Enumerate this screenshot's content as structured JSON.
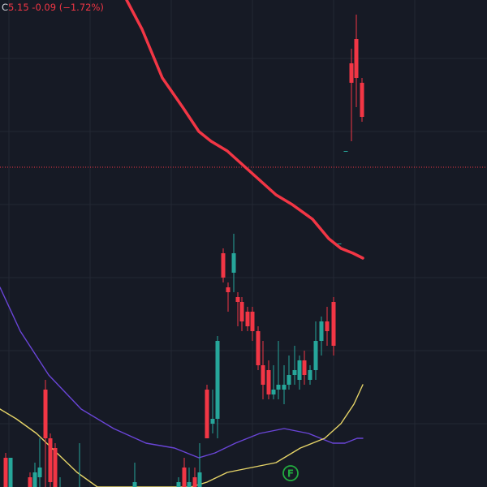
{
  "legend": {
    "close_label": "C",
    "close_value": "5.15",
    "change": "-0.09",
    "change_pct": "(−1.72%)",
    "change_color": "#f23645"
  },
  "colors": {
    "background": "#161a25",
    "grid": "#232834",
    "up": "#26a69a",
    "down": "#f23645",
    "ma_red": "#f23645",
    "ma_purple": "#6a45d8",
    "ma_yellow": "#e6d468",
    "price_line": "#f23645",
    "event_marker": "#22ab3f"
  },
  "event_marker": {
    "label": "F",
    "icon": "earnings-flag-icon"
  },
  "chart_data": {
    "type": "candlestick",
    "title": "",
    "grid": true,
    "current_price": 5.15,
    "price_ylim": [
      0,
      100
    ],
    "candles": [
      {
        "x": 7,
        "o": 6,
        "h": 7,
        "l": 0,
        "c": 0
      },
      {
        "x": 13,
        "o": 0,
        "h": 6,
        "l": 0,
        "c": 6
      },
      {
        "x": 37,
        "o": 2,
        "h": 3,
        "l": 0,
        "c": 0
      },
      {
        "x": 43,
        "o": 0,
        "h": 5,
        "l": 0,
        "c": 3
      },
      {
        "x": 49,
        "o": 2,
        "h": 10,
        "l": 0,
        "c": 4
      },
      {
        "x": 56,
        "o": 20,
        "h": 22,
        "l": 0,
        "c": 10
      },
      {
        "x": 62,
        "o": 10,
        "h": 11,
        "l": 0,
        "c": 1
      },
      {
        "x": 68,
        "o": 8,
        "h": 9,
        "l": 0,
        "c": 0
      },
      {
        "x": 74,
        "o": 0,
        "h": 2,
        "l": 0,
        "c": 0
      },
      {
        "x": 98,
        "o": 0,
        "h": 9,
        "l": 0,
        "c": 0
      },
      {
        "x": 166,
        "o": 0,
        "h": 5,
        "l": 0,
        "c": 1
      },
      {
        "x": 220,
        "o": 0,
        "h": 2,
        "l": 0,
        "c": 1
      },
      {
        "x": 227,
        "o": 4,
        "h": 6,
        "l": 0,
        "c": 0
      },
      {
        "x": 233,
        "o": 0,
        "h": 4,
        "l": 0,
        "c": 1
      },
      {
        "x": 240,
        "o": 2,
        "h": 4,
        "l": 0,
        "c": 0
      },
      {
        "x": 246,
        "o": 0,
        "h": 9,
        "l": 0,
        "c": 3
      },
      {
        "x": 255,
        "o": 20,
        "h": 21,
        "l": 10,
        "c": 10
      },
      {
        "x": 262,
        "o": 13,
        "h": 20,
        "l": 11,
        "c": 14
      },
      {
        "x": 268,
        "o": 14,
        "h": 31,
        "l": 10,
        "c": 30
      },
      {
        "x": 275,
        "o": 48,
        "h": 49,
        "l": 42,
        "c": 43
      },
      {
        "x": 281,
        "o": 41,
        "h": 42,
        "l": 36,
        "c": 40
      },
      {
        "x": 288,
        "o": 44,
        "h": 52,
        "l": 40,
        "c": 48
      },
      {
        "x": 293,
        "o": 39,
        "h": 40,
        "l": 33,
        "c": 38
      },
      {
        "x": 298,
        "o": 38,
        "h": 39,
        "l": 32,
        "c": 34
      },
      {
        "x": 305,
        "o": 36,
        "h": 37,
        "l": 32,
        "c": 33
      },
      {
        "x": 311,
        "o": 36,
        "h": 37,
        "l": 30,
        "c": 32
      },
      {
        "x": 318,
        "o": 32,
        "h": 33,
        "l": 24,
        "c": 25
      },
      {
        "x": 324,
        "o": 25,
        "h": 30,
        "l": 18,
        "c": 21
      },
      {
        "x": 331,
        "o": 24,
        "h": 26,
        "l": 18,
        "c": 19
      },
      {
        "x": 337,
        "o": 19,
        "h": 25,
        "l": 18,
        "c": 20
      },
      {
        "x": 343,
        "o": 20,
        "h": 30,
        "l": 18,
        "c": 21
      },
      {
        "x": 350,
        "o": 20,
        "h": 25,
        "l": 17,
        "c": 21
      },
      {
        "x": 356,
        "o": 21,
        "h": 27,
        "l": 20,
        "c": 23
      },
      {
        "x": 363,
        "o": 23,
        "h": 29,
        "l": 21,
        "c": 24
      },
      {
        "x": 369,
        "o": 22,
        "h": 27,
        "l": 20,
        "c": 26
      },
      {
        "x": 375,
        "o": 26,
        "h": 28,
        "l": 21,
        "c": 23
      },
      {
        "x": 382,
        "o": 22,
        "h": 25,
        "l": 21,
        "c": 24
      },
      {
        "x": 389,
        "o": 24,
        "h": 34,
        "l": 22,
        "c": 30
      },
      {
        "x": 396,
        "o": 30,
        "h": 35,
        "l": 27,
        "c": 34
      },
      {
        "x": 403,
        "o": 34,
        "h": 37,
        "l": 29,
        "c": 32
      },
      {
        "x": 411,
        "o": 38,
        "h": 39,
        "l": 27,
        "c": 29
      },
      {
        "x": 418,
        "o": 50,
        "h": 50,
        "l": 50,
        "c": 50
      },
      {
        "x": 426,
        "o": 69,
        "h": 69,
        "l": 69,
        "c": 69
      },
      {
        "x": 433,
        "o": 87,
        "h": 90,
        "l": 71,
        "c": 83
      },
      {
        "x": 439,
        "o": 92,
        "h": 97,
        "l": 78,
        "c": 84
      },
      {
        "x": 446,
        "o": 83,
        "h": 84,
        "l": 75,
        "c": 76
      }
    ],
    "moving_averages": [
      {
        "color": "#f23645",
        "points": [
          [
            156,
            100
          ],
          [
            175,
            94
          ],
          [
            200,
            84
          ],
          [
            225,
            78
          ],
          [
            245,
            73
          ],
          [
            260,
            71
          ],
          [
            280,
            69
          ],
          [
            300,
            66
          ],
          [
            320,
            63
          ],
          [
            340,
            60
          ],
          [
            360,
            58
          ],
          [
            385,
            55
          ],
          [
            405,
            51
          ],
          [
            420,
            49
          ],
          [
            435,
            48
          ],
          [
            447,
            47
          ]
        ]
      },
      {
        "color": "#6a45d8",
        "points": [
          [
            0,
            41
          ],
          [
            25,
            32
          ],
          [
            60,
            23
          ],
          [
            100,
            16
          ],
          [
            140,
            12
          ],
          [
            180,
            9
          ],
          [
            215,
            8
          ],
          [
            245,
            6
          ],
          [
            265,
            7
          ],
          [
            290,
            9
          ],
          [
            320,
            11
          ],
          [
            350,
            12
          ],
          [
            380,
            11
          ],
          [
            410,
            9
          ],
          [
            425,
            9
          ],
          [
            440,
            10
          ],
          [
            447,
            10
          ]
        ]
      },
      {
        "color": "#e6d468",
        "points": [
          [
            0,
            16
          ],
          [
            20,
            14
          ],
          [
            45,
            11
          ],
          [
            70,
            7
          ],
          [
            95,
            3
          ],
          [
            120,
            0
          ],
          [
            170,
            0
          ],
          [
            200,
            0
          ],
          [
            235,
            0
          ],
          [
            255,
            1
          ],
          [
            280,
            3
          ],
          [
            310,
            4
          ],
          [
            340,
            5
          ],
          [
            370,
            8
          ],
          [
            400,
            10
          ],
          [
            420,
            13
          ],
          [
            436,
            17
          ],
          [
            447,
            21
          ]
        ]
      }
    ]
  }
}
